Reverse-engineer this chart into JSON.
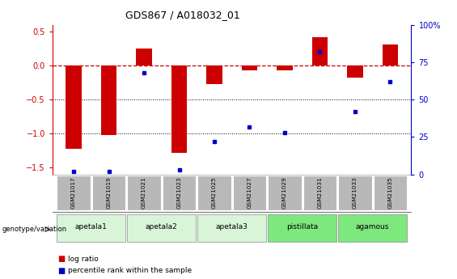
{
  "title": "GDS867 / A018032_01",
  "samples": [
    "GSM21017",
    "GSM21019",
    "GSM21021",
    "GSM21023",
    "GSM21025",
    "GSM21027",
    "GSM21029",
    "GSM21031",
    "GSM21033",
    "GSM21035"
  ],
  "log_ratio": [
    -1.22,
    -1.02,
    0.25,
    -1.28,
    -0.27,
    -0.07,
    -0.07,
    0.42,
    -0.18,
    0.32
  ],
  "percentile_rank": [
    2,
    2,
    68,
    3,
    22,
    32,
    28,
    82,
    42,
    62
  ],
  "group_spans": [
    {
      "name": "apetala1",
      "start": 0,
      "end": 1,
      "color": "#d8f5d8"
    },
    {
      "name": "apetala2",
      "start": 2,
      "end": 3,
      "color": "#d8f5d8"
    },
    {
      "name": "apetala3",
      "start": 4,
      "end": 5,
      "color": "#d8f5d8"
    },
    {
      "name": "pistillata",
      "start": 6,
      "end": 7,
      "color": "#7de87d"
    },
    {
      "name": "agamous",
      "start": 8,
      "end": 9,
      "color": "#7de87d"
    }
  ],
  "ylim_left": [
    -1.6,
    0.6
  ],
  "ylim_right": [
    0,
    100
  ],
  "bar_color": "#cc0000",
  "dot_color": "#0000cc",
  "zero_line_color": "#cc0000",
  "background_color": "#ffffff",
  "sample_box_color": "#b8b8b8"
}
